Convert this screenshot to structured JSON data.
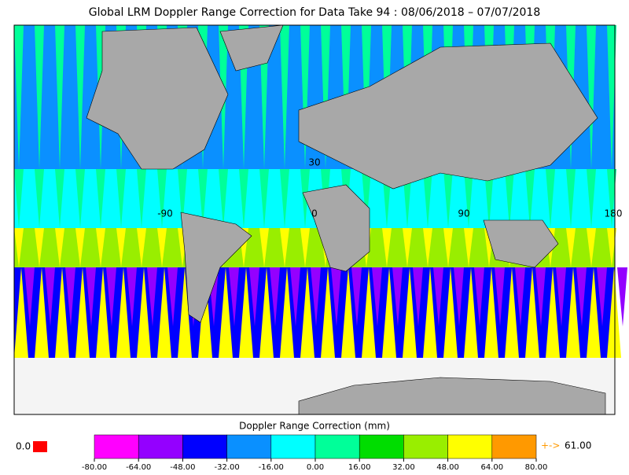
{
  "title": "Global LRM Doppler Range Correction for Data Take 94 : 08/06/2018 – 07/07/2018",
  "colorbar": {
    "label": "Doppler Range Correction (mm)",
    "ticks": [
      {
        "value": -80,
        "label": "-80.00"
      },
      {
        "value": -64,
        "label": "-64.00"
      },
      {
        "value": -48,
        "label": "-48.00"
      },
      {
        "value": -32,
        "label": "-32.00"
      },
      {
        "value": -16,
        "label": "-16.00"
      },
      {
        "value": 0,
        "label": "0.00"
      },
      {
        "value": 16,
        "label": "16.00"
      },
      {
        "value": 32,
        "label": "32.00"
      },
      {
        "value": 48,
        "label": "48.00"
      },
      {
        "value": 64,
        "label": "64.00"
      },
      {
        "value": 80,
        "label": "80.00"
      }
    ],
    "colors": [
      "#ff00ff",
      "#9400ff",
      "#0000ff",
      "#0a90ff",
      "#00ffff",
      "#00ff99",
      "#00dd00",
      "#99ee00",
      "#ffff00",
      "#ff9900"
    ]
  },
  "nodata": {
    "label": "0.0",
    "color": "#ff0000"
  },
  "overflow": {
    "arrow": "+->",
    "value": 61,
    "label": "61.00"
  },
  "map_labels": {
    "lat": [
      30
    ],
    "lon": [
      -90,
      0,
      90,
      180
    ]
  }
}
